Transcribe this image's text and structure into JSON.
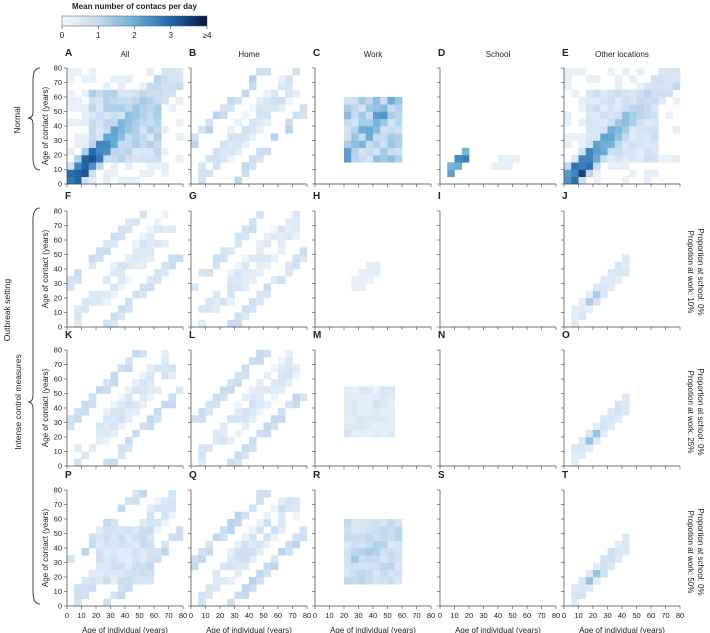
{
  "colorbar": {
    "title": "Mean number of contacs per day",
    "ticks": [
      "0",
      "1",
      "2",
      "3",
      "≥4"
    ],
    "min_color": "#f2f7fc",
    "max_color": "#08183f"
  },
  "columns": [
    {
      "letter": "A",
      "title": "All"
    },
    {
      "letter": "B",
      "title": "Home"
    },
    {
      "letter": "C",
      "title": "Work"
    },
    {
      "letter": "D",
      "title": "School"
    },
    {
      "letter": "E",
      "title": "Other locations"
    }
  ],
  "row_letters": [
    [
      "A",
      "B",
      "C",
      "D",
      "E"
    ],
    [
      "F",
      "G",
      "H",
      "I",
      "J"
    ],
    [
      "K",
      "L",
      "M",
      "N",
      "O"
    ],
    [
      "P",
      "Q",
      "R",
      "S",
      "T"
    ]
  ],
  "left_labels": {
    "normal": "Normal",
    "outbreak": "Outbreak setting",
    "intense": "Intense control measures"
  },
  "right_labels": [
    {
      "work": "Propotion at work: 10%",
      "school": "Proportion at school: 0%"
    },
    {
      "work": "Propotion at work: 25%",
      "school": "Proportion at school: 0%"
    },
    {
      "work": "Propotion at work: 50%",
      "school": "Proportion at school: 0%"
    }
  ],
  "axes": {
    "xlabel": "Age of individual (years)",
    "ylabel": "Age of contact (years)",
    "ticks": [
      "0",
      "10",
      "20",
      "30",
      "40",
      "50",
      "60",
      "70",
      "80"
    ]
  },
  "chart_data": {
    "type": "heatmap",
    "description_units": "age bins of 5 years from 0 to 80; value = mean contacts per day",
    "x_range": [
      0,
      80
    ],
    "y_range": [
      0,
      80
    ],
    "color_range": [
      0,
      4
    ],
    "panels": {
      "A": {
        "type": "diag+block",
        "diag": 3.4,
        "band": 1.2,
        "block": [
          15,
          65,
          15,
          65
        ],
        "block_val": 1.0
      },
      "B": {
        "type": "household",
        "val": 1.0
      },
      "C": {
        "type": "block",
        "block": [
          20,
          60,
          15,
          60
        ],
        "block_val": 1.3
      },
      "D": {
        "type": "school",
        "val": 2.6
      },
      "E": {
        "type": "diag+block",
        "diag": 3.2,
        "band": 1.0,
        "block": [
          15,
          65,
          15,
          65
        ],
        "block_val": 0.7
      },
      "F": {
        "type": "household",
        "val": 0.8
      },
      "G": {
        "type": "household",
        "val": 0.8
      },
      "H": {
        "type": "sparse-work",
        "val": 0.25
      },
      "I": {
        "type": "empty"
      },
      "J": {
        "type": "diag-short",
        "val": 0.6
      },
      "K": {
        "type": "household",
        "val": 0.9
      },
      "L": {
        "type": "household",
        "val": 0.9
      },
      "M": {
        "type": "block",
        "block": [
          20,
          55,
          20,
          55
        ],
        "block_val": 0.45
      },
      "N": {
        "type": "empty"
      },
      "O": {
        "type": "diag-short",
        "val": 0.7
      },
      "P": {
        "type": "household+work",
        "val": 1.0,
        "block_val": 0.8
      },
      "Q": {
        "type": "household",
        "val": 1.0
      },
      "R": {
        "type": "block",
        "block": [
          20,
          60,
          15,
          60
        ],
        "block_val": 0.9
      },
      "S": {
        "type": "empty"
      },
      "T": {
        "type": "diag-short",
        "val": 0.7
      }
    }
  }
}
